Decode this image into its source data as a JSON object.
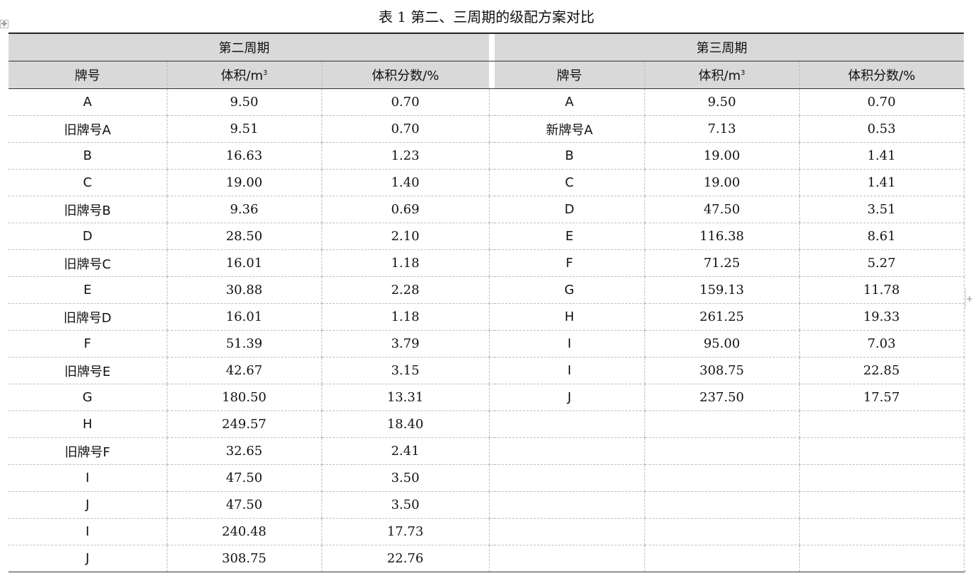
{
  "title": "表 1  第二、三周期的级配方案对比",
  "groups": {
    "left": "第二周期",
    "right": "第三周期"
  },
  "columns": {
    "brand": "牌号",
    "volume_prefix": "体积/m",
    "volume_exp": "3",
    "fraction": "体积分数/%"
  },
  "handles": {
    "move": "✥",
    "side": "+",
    "corner": "⌟"
  },
  "left_rows": [
    [
      "A",
      "9.50",
      "0.70"
    ],
    [
      "旧牌号A",
      "9.51",
      "0.70"
    ],
    [
      "B",
      "16.63",
      "1.23"
    ],
    [
      "C",
      "19.00",
      "1.40"
    ],
    [
      "旧牌号B",
      "9.36",
      "0.69"
    ],
    [
      "D",
      "28.50",
      "2.10"
    ],
    [
      "旧牌号C",
      "16.01",
      "1.18"
    ],
    [
      "E",
      "30.88",
      "2.28"
    ],
    [
      "旧牌号D",
      "16.01",
      "1.18"
    ],
    [
      "F",
      "51.39",
      "3.79"
    ],
    [
      "旧牌号E",
      "42.67",
      "3.15"
    ],
    [
      "G",
      "180.50",
      "13.31"
    ],
    [
      "H",
      "249.57",
      "18.40"
    ],
    [
      "旧牌号F",
      "32.65",
      "2.41"
    ],
    [
      "I",
      "47.50",
      "3.50"
    ],
    [
      "J",
      "47.50",
      "3.50"
    ],
    [
      "I",
      "240.48",
      "17.73"
    ],
    [
      "J",
      "308.75",
      "22.76"
    ]
  ],
  "right_rows": [
    [
      "A",
      "9.50",
      "0.70"
    ],
    [
      "新牌号A",
      "7.13",
      "0.53"
    ],
    [
      "B",
      "19.00",
      "1.41"
    ],
    [
      "C",
      "19.00",
      "1.41"
    ],
    [
      "D",
      "47.50",
      "3.51"
    ],
    [
      "E",
      "116.38",
      "8.61"
    ],
    [
      "F",
      "71.25",
      "5.27"
    ],
    [
      "G",
      "159.13",
      "11.78"
    ],
    [
      "H",
      "261.25",
      "19.33"
    ],
    [
      "I",
      "95.00",
      "7.03"
    ],
    [
      "I",
      "308.75",
      "22.85"
    ],
    [
      "J",
      "237.50",
      "17.57"
    ],
    [
      "",
      "",
      ""
    ],
    [
      "",
      "",
      ""
    ],
    [
      "",
      "",
      ""
    ],
    [
      "",
      "",
      ""
    ],
    [
      "",
      "",
      ""
    ],
    [
      "",
      "",
      ""
    ]
  ]
}
